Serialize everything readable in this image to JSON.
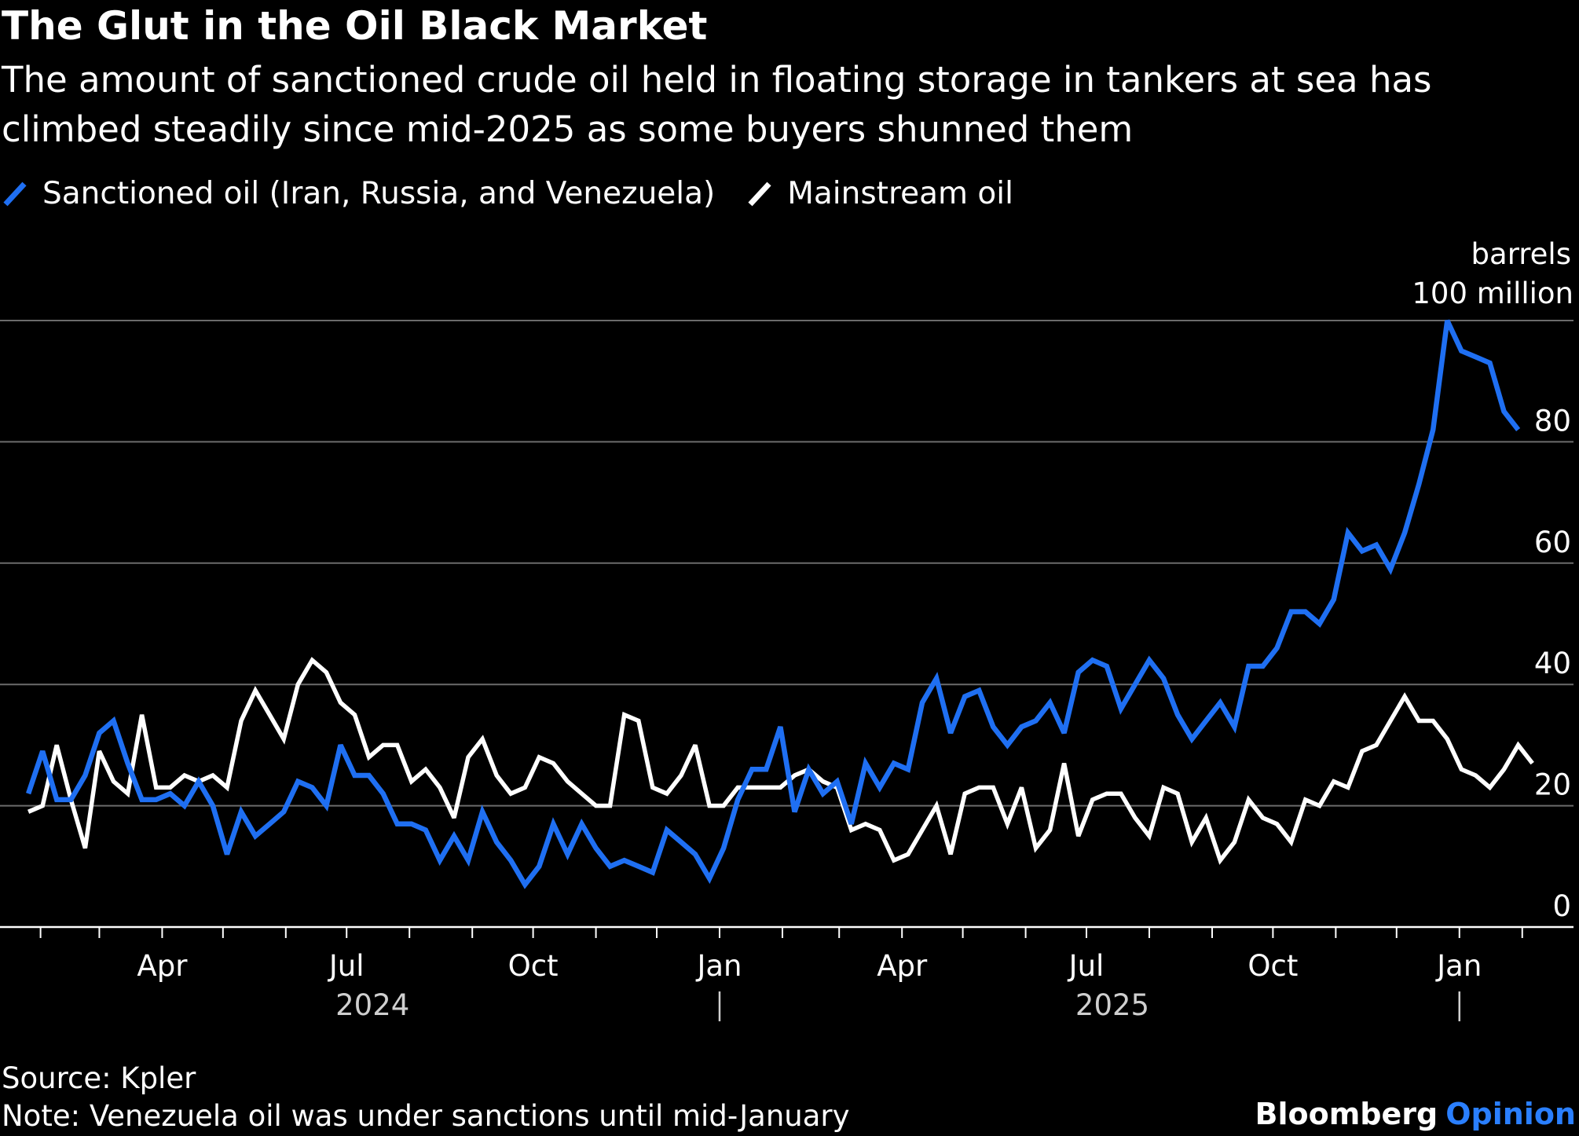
{
  "title": "The Glut in the Oil Black Market",
  "subtitle": "The amount of sanctioned crude oil held in floating storage in tankers at sea has climbed steadily since mid-2025 as some buyers shunned them",
  "source": "Source: Kpler",
  "note": "Note: Venezuela oil was under sanctions until mid-January",
  "brand": {
    "name": "Bloomberg",
    "sub": "Opinion"
  },
  "colors": {
    "sanctioned": "#1f6ff2",
    "mainstream": "#ffffff",
    "background": "#000000",
    "grid": "#6b6b6b"
  },
  "chart_data": {
    "type": "line",
    "unit_label": [
      "barrels",
      "100 million"
    ],
    "ylim": [
      0,
      100
    ],
    "yticks": [
      0,
      20,
      40,
      60,
      80
    ],
    "grid": true,
    "legend_position": "top-left",
    "x_start": "2024-01-26",
    "x_step_days": 7,
    "xlim": [
      "2024-01-12",
      "2026-03-01"
    ],
    "month_ticks": [
      {
        "label": "Apr",
        "date": "2024-04-01"
      },
      {
        "label": "Jul",
        "date": "2024-07-01"
      },
      {
        "label": "Oct",
        "date": "2024-10-01"
      },
      {
        "label": "Jan",
        "date": "2025-01-01"
      },
      {
        "label": "Apr",
        "date": "2025-04-01"
      },
      {
        "label": "Jul",
        "date": "2025-07-01"
      },
      {
        "label": "Oct",
        "date": "2025-10-01"
      },
      {
        "label": "Jan",
        "date": "2026-01-01"
      }
    ],
    "minor_ticks": [
      "2024-02-01",
      "2024-03-01",
      "2024-05-01",
      "2024-06-01",
      "2024-08-01",
      "2024-09-01",
      "2024-11-01",
      "2024-12-01",
      "2025-02-01",
      "2025-03-01",
      "2025-05-01",
      "2025-06-01",
      "2025-08-01",
      "2025-09-01",
      "2025-11-01",
      "2025-12-01",
      "2026-02-01"
    ],
    "year_labels": [
      {
        "label": "2024",
        "date": "2024-07-01"
      },
      {
        "label": "2025",
        "date": "2025-07-01"
      }
    ],
    "year_separators": [
      "2025-01-01",
      "2026-01-01"
    ],
    "series": [
      {
        "name": "Sanctioned oil (Iran, Russia, and Venezuela)",
        "values": [
          22,
          29,
          21,
          21,
          25,
          32,
          34,
          27,
          21,
          21,
          22,
          20,
          24,
          20,
          12,
          19,
          15,
          17,
          19,
          24,
          23,
          20,
          30,
          25,
          25,
          22,
          17,
          17,
          16,
          11,
          15,
          11,
          19,
          14,
          11,
          7,
          10,
          17,
          12,
          17,
          13,
          10,
          11,
          10,
          9,
          16,
          14,
          12,
          8,
          13,
          21,
          26,
          26,
          33,
          19,
          26,
          22,
          24,
          17,
          27,
          23,
          27,
          26,
          37,
          41,
          32,
          38,
          39,
          33,
          30,
          33,
          34,
          37,
          32,
          42,
          44,
          43,
          36,
          40,
          44,
          41,
          35,
          31,
          34,
          37,
          33,
          43,
          43,
          46,
          52,
          52,
          50,
          54,
          65,
          62,
          63,
          59,
          65,
          73,
          82,
          100,
          95,
          94,
          93,
          85,
          82
        ]
      },
      {
        "name": "Mainstream oil",
        "values": [
          19,
          20,
          30,
          21,
          13,
          29,
          24,
          22,
          35,
          23,
          23,
          25,
          24,
          25,
          23,
          34,
          39,
          35,
          31,
          40,
          44,
          42,
          37,
          35,
          28,
          30,
          30,
          24,
          26,
          23,
          18,
          28,
          31,
          25,
          22,
          23,
          28,
          27,
          24,
          22,
          20,
          20,
          35,
          34,
          23,
          22,
          25,
          30,
          20,
          20,
          23,
          23,
          23,
          23,
          25,
          26,
          24,
          23,
          16,
          17,
          16,
          11,
          12,
          16,
          20,
          12,
          22,
          23,
          23,
          17,
          23,
          13,
          16,
          27,
          15,
          21,
          22,
          22,
          18,
          15,
          23,
          22,
          14,
          18,
          11,
          14,
          21,
          18,
          17,
          14,
          21,
          20,
          24,
          23,
          29,
          30,
          34,
          38,
          34,
          34,
          31,
          26,
          25,
          23,
          26,
          30,
          27
        ]
      }
    ]
  }
}
